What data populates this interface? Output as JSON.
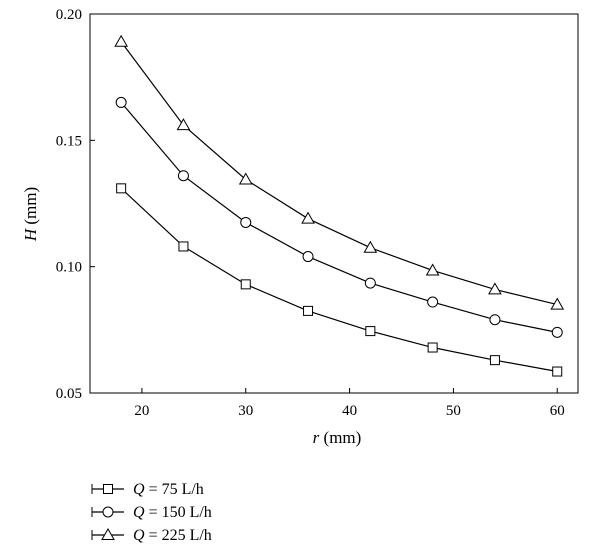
{
  "chart_data": {
    "type": "line",
    "x": [
      18,
      24,
      30,
      36,
      42,
      48,
      54,
      60
    ],
    "xlim": [
      15,
      62
    ],
    "ylim": [
      0.05,
      0.2
    ],
    "xticks": [
      20,
      30,
      40,
      50,
      60
    ],
    "yticks": [
      0.05,
      0.1,
      0.15,
      0.2
    ],
    "ytick_labels": [
      "0.05",
      "0.10",
      "0.15",
      "0.20"
    ],
    "xlabel": {
      "var": "r",
      "unit": "(mm)"
    },
    "ylabel": {
      "var": "H",
      "unit": "(mm)"
    },
    "grid": false,
    "legend_position": "bottom-left, below plot",
    "series": [
      {
        "label_var": "Q",
        "label_value": "= 75 L/h",
        "marker": "square",
        "values": [
          0.131,
          0.108,
          0.093,
          0.0825,
          0.0745,
          0.068,
          0.063,
          0.0585
        ]
      },
      {
        "label_var": "Q",
        "label_value": "= 150 L/h",
        "marker": "circle",
        "values": [
          0.165,
          0.136,
          0.1175,
          0.104,
          0.0935,
          0.086,
          0.079,
          0.074
        ]
      },
      {
        "label_var": "Q",
        "label_value": "= 225 L/h",
        "marker": "triangle",
        "values": [
          0.189,
          0.156,
          0.1345,
          0.119,
          0.1075,
          0.0985,
          0.091,
          0.085
        ]
      }
    ]
  }
}
